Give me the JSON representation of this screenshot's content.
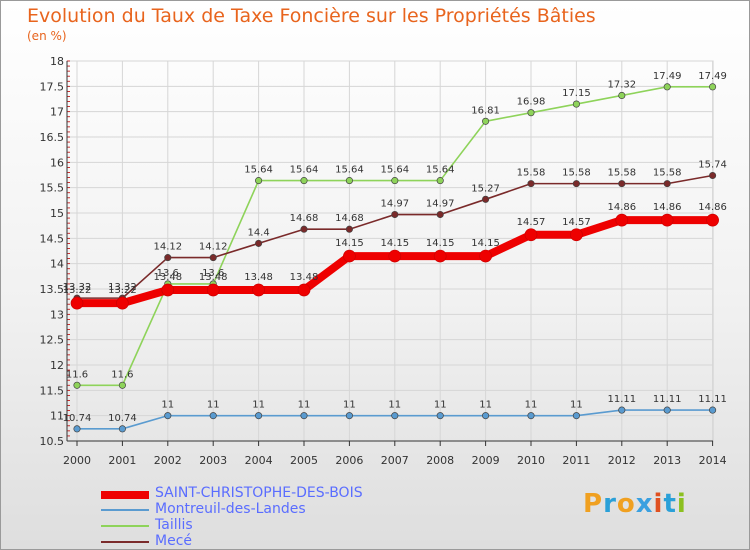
{
  "header": {
    "title": "Evolution du Taux de Taxe Foncière sur les Propriétés Bâties",
    "unit": "(en %)"
  },
  "brand": {
    "text": "Proxiti",
    "letters": [
      "P",
      "r",
      "o",
      "x",
      "i",
      "t",
      "i"
    ],
    "colors": [
      "#f0a020",
      "#2aa0d8",
      "#f0a020",
      "#3aa0e0",
      "#e05020",
      "#2aa0d8",
      "#8cc020"
    ]
  },
  "chart_data": {
    "type": "line",
    "title": "Evolution du Taux de Taxe Foncière sur les Propriétés Bâties",
    "ylabel": "(en %)",
    "xlabel": "",
    "categories": [
      "2000",
      "2001",
      "2002",
      "2003",
      "2004",
      "2005",
      "2006",
      "2007",
      "2008",
      "2009",
      "2010",
      "2011",
      "2012",
      "2013",
      "2014"
    ],
    "ylim": [
      10.5,
      18
    ],
    "yticks": [
      10.5,
      11,
      11.5,
      12,
      12.5,
      13,
      13.5,
      14,
      14.5,
      15,
      15.5,
      16,
      16.5,
      17,
      17.5,
      18
    ],
    "ytick_labels": [
      "10.5",
      "11",
      "11.5",
      "12",
      "12.5",
      "13",
      "13.5",
      "14",
      "14.5",
      "15",
      "15.5",
      "16",
      "16.5",
      "17",
      "17.5",
      "18"
    ],
    "grid": true,
    "legend": "bottom-left",
    "series": [
      {
        "name": "Montreuil-des-Landes",
        "color": "#5a9bd0",
        "values": [
          10.74,
          10.74,
          11,
          11,
          11,
          11,
          11,
          11,
          11,
          11,
          11,
          11,
          11.11,
          11.11,
          11.11
        ],
        "labels": [
          "10.74",
          "10.74",
          "11",
          "11",
          "11",
          "11",
          "11",
          "11",
          "11",
          "11",
          "11",
          "11",
          "11.11",
          "11.11",
          "11.11"
        ]
      },
      {
        "name": "Taillis",
        "color": "#8ed35a",
        "values": [
          11.6,
          11.6,
          13.6,
          13.6,
          15.64,
          15.64,
          15.64,
          15.64,
          15.64,
          16.81,
          16.98,
          17.15,
          17.32,
          17.49,
          17.49
        ],
        "labels": [
          "11.6",
          "11.6",
          "13.6",
          "13.6",
          "15.64",
          "15.64",
          "15.64",
          "15.64",
          "15.64",
          "16.81",
          "16.98",
          "17.15",
          "17.32",
          "17.49",
          "17.49"
        ]
      },
      {
        "name": "Mecé",
        "color": "#7a2a2a",
        "values": [
          13.32,
          13.32,
          14.12,
          14.12,
          14.4,
          14.68,
          14.68,
          14.97,
          14.97,
          15.27,
          15.58,
          15.58,
          15.58,
          15.58,
          15.74
        ],
        "labels": [
          "13.32",
          "13.32",
          "14.12",
          "14.12",
          "14.4",
          "14.68",
          "14.68",
          "14.97",
          "14.97",
          "15.27",
          "15.58",
          "15.58",
          "15.58",
          "15.58",
          "15.74"
        ]
      },
      {
        "name": "SAINT-CHRISTOPHE-DES-BOIS",
        "color": "#ee0000",
        "values": [
          13.22,
          13.22,
          13.48,
          13.48,
          13.48,
          13.48,
          14.15,
          14.15,
          14.15,
          14.15,
          14.57,
          14.57,
          14.86,
          14.86,
          14.86
        ],
        "labels": [
          "13.22",
          "13.22",
          "13.48",
          "13.48",
          "13.48",
          "13.48",
          "14.15",
          "14.15",
          "14.15",
          "14.15",
          "14.57",
          "14.57",
          "14.86",
          "14.86",
          "14.86"
        ]
      }
    ]
  }
}
